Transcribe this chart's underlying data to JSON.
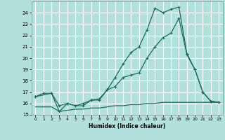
{
  "xlabel": "Humidex (Indice chaleur)",
  "background_color": "#b2e0dc",
  "grid_color": "#a0d0cc",
  "line_color": "#1a6b5e",
  "xlim": [
    -0.5,
    23.5
  ],
  "ylim": [
    15,
    25.0
  ],
  "xticks": [
    0,
    1,
    2,
    3,
    4,
    5,
    6,
    7,
    8,
    9,
    10,
    11,
    12,
    13,
    14,
    15,
    16,
    17,
    18,
    19,
    20,
    21,
    22,
    23
  ],
  "yticks": [
    15,
    16,
    17,
    18,
    19,
    20,
    21,
    22,
    23,
    24
  ],
  "series1_x": [
    0,
    1,
    2,
    3,
    4,
    5,
    6,
    7,
    8,
    9,
    10,
    11,
    12,
    13,
    14,
    15,
    16,
    17,
    18,
    19,
    20,
    21,
    22,
    23
  ],
  "series1_y": [
    16.6,
    16.9,
    16.9,
    15.8,
    16.0,
    15.8,
    15.8,
    16.3,
    16.3,
    17.2,
    18.3,
    19.5,
    20.5,
    21.0,
    22.5,
    24.4,
    24.0,
    24.3,
    24.5,
    20.4,
    19.0,
    17.0,
    16.2,
    16.1
  ],
  "series2_x": [
    0,
    2,
    3,
    4,
    5,
    6,
    7,
    8,
    9,
    10,
    11,
    12,
    13,
    14,
    15,
    16,
    17,
    18,
    19,
    20,
    21,
    22,
    23
  ],
  "series2_y": [
    16.6,
    16.9,
    15.3,
    16.0,
    15.8,
    16.0,
    16.3,
    16.4,
    17.2,
    17.5,
    18.3,
    18.5,
    18.7,
    20.0,
    21.0,
    21.8,
    22.2,
    23.5,
    20.3,
    19.0,
    17.0,
    16.2,
    16.1
  ],
  "series3_x": [
    0,
    1,
    2,
    3,
    4,
    5,
    6,
    7,
    8,
    9,
    10,
    11,
    12,
    13,
    14,
    15,
    16,
    17,
    18,
    19,
    20,
    21,
    22,
    23
  ],
  "series3_y": [
    15.7,
    15.7,
    15.7,
    15.3,
    15.4,
    15.5,
    15.5,
    15.6,
    15.6,
    15.7,
    15.8,
    15.8,
    15.9,
    15.9,
    16.0,
    16.0,
    16.1,
    16.1,
    16.1,
    16.1,
    16.1,
    16.1,
    16.1,
    16.1
  ]
}
